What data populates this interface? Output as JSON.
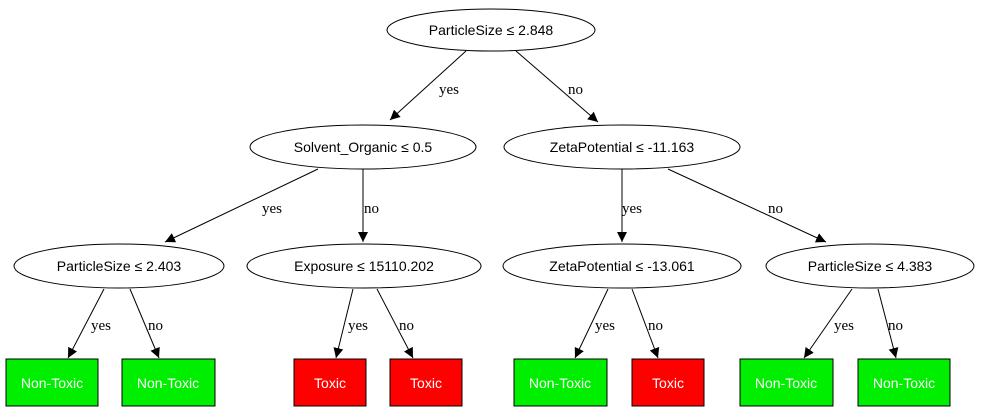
{
  "colors": {
    "toxic": "#ff0000",
    "non_toxic": "#00ee00"
  },
  "nodes": {
    "root": "ParticleSize ≤ 2.848",
    "solvent": "Solvent_Organic ≤ 0.5",
    "zeta1": "ZetaPotential ≤ -11.163",
    "ps2": "ParticleSize ≤ 2.403",
    "exposure": "Exposure ≤ 15110.202",
    "zeta2": "ZetaPotential ≤ -13.061",
    "ps3": "ParticleSize ≤ 4.383"
  },
  "leaves": [
    "Non-Toxic",
    "Non-Toxic",
    "Toxic",
    "Toxic",
    "Non-Toxic",
    "Toxic",
    "Non-Toxic",
    "Non-Toxic"
  ],
  "edges": {
    "root_yes": "yes",
    "root_no": "no",
    "solvent_yes": "yes",
    "solvent_no": "no",
    "zeta1_yes": "yes",
    "zeta1_no": "no",
    "ps2_yes": "yes",
    "ps2_no": "no",
    "exposure_yes": "yes",
    "exposure_no": "no",
    "zeta2_yes": "yes",
    "zeta2_no": "no",
    "ps3_yes": "yes",
    "ps3_no": "no"
  }
}
